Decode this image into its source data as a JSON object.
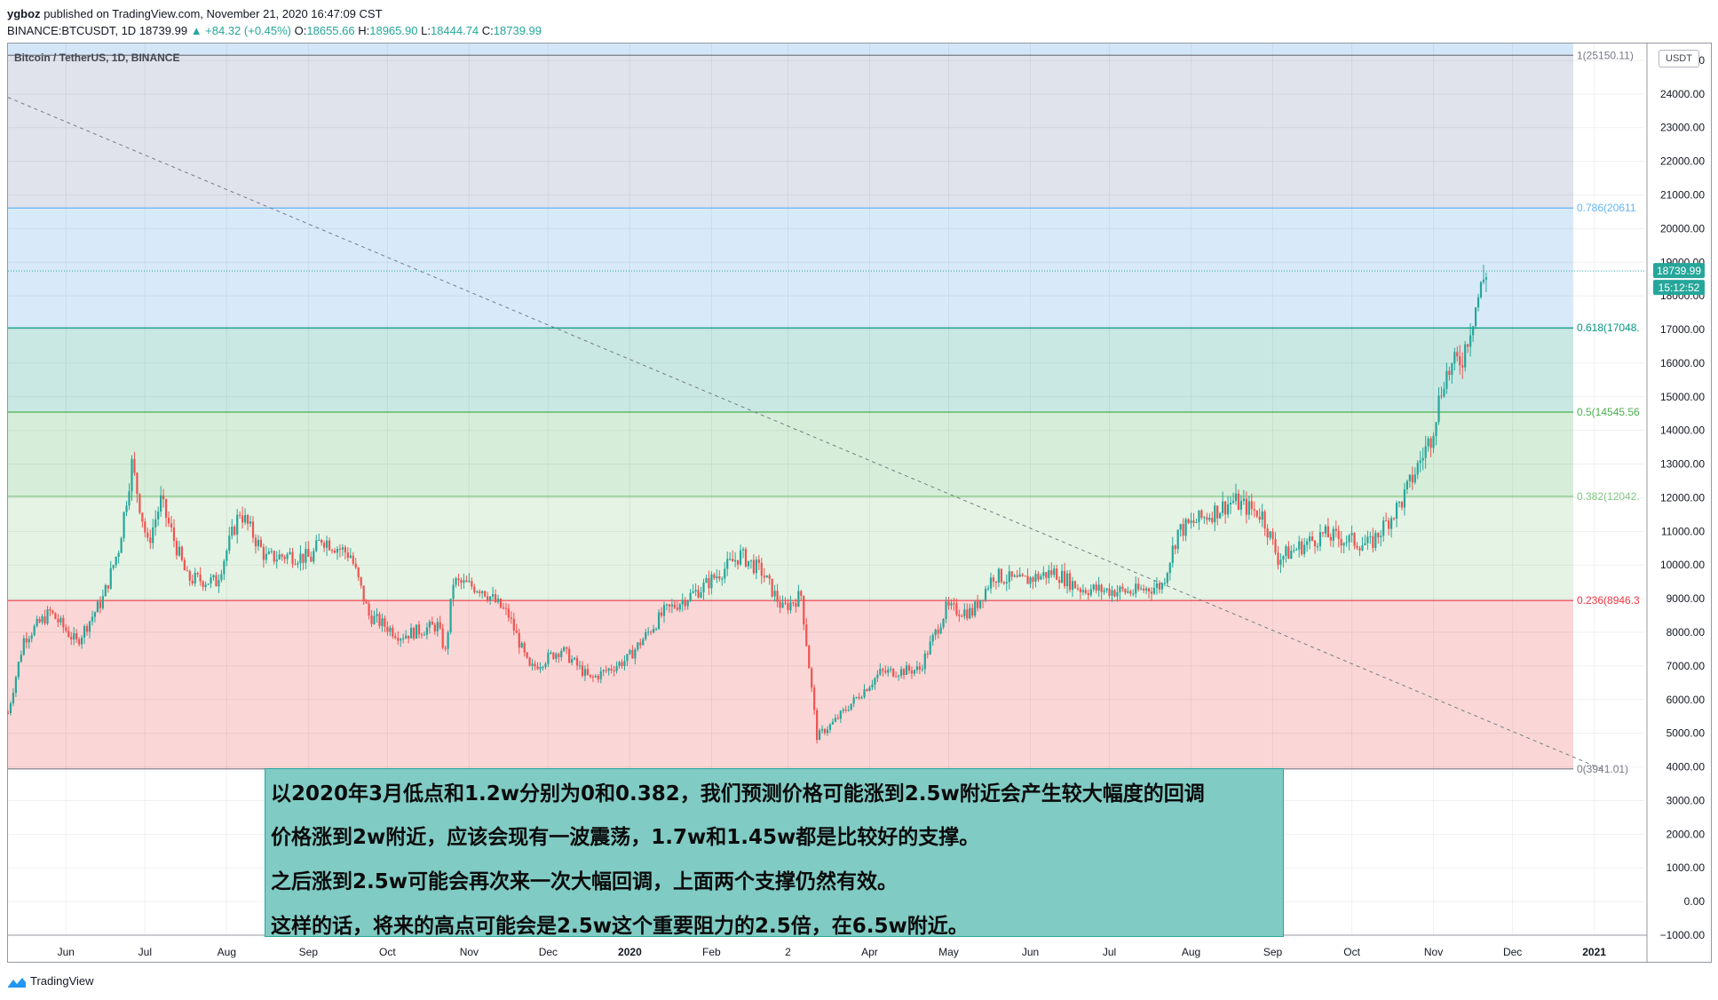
{
  "header": {
    "publisher": "ygboz",
    "published_text": "published on TradingView.com, November 21, 2020 16:47:09 CST",
    "symbol_line": "BINANCE:BTCUSDT, 1D",
    "last": "18739.99",
    "change": "▲ +84.32 (+0.45%)",
    "o_label": "O:",
    "o_value": "18655.66",
    "h_label": "H:",
    "h_value": "18965.90",
    "l_label": "L:",
    "l_value": "18444.74",
    "c_label": "C:",
    "c_value": "18739.99"
  },
  "chart_label": "Bitcoin / TetherUS, 1D, BINANCE",
  "unit_badge": "USDT",
  "price_tag": "18739.99",
  "countdown_tag": "15:12:52",
  "annotation": {
    "lines": [
      "以2020年3月低点和1.2w分别为0和0.382，我们预测价格可能涨到2.5w附近会产生较大幅度的回调",
      "价格涨到2w附近，应该会现有一波震荡，1.7w和1.45w都是比较好的支撑。",
      "之后涨到2.5w可能会再次来一次大幅回调，上面两个支撑仍然有效。",
      "这样的话，将来的高点可能会是2.5w这个重要阻力的2.5倍，在6.5w附近。"
    ]
  },
  "footer": {
    "brand": "TradingView"
  },
  "colors": {
    "up": "#26a69a",
    "down": "#ef5350",
    "fib_1_line": "#787b86",
    "fib_0786": "#64b5f6",
    "fib_0618": "#089981",
    "fib_05": "#4caf50",
    "fib_0382": "#81c784",
    "fib_0236": "#f23645",
    "fib_0": "#787b86"
  },
  "chart_data": {
    "type": "candlestick",
    "symbol": "BTCUSDT",
    "interval": "1D",
    "ylim": [
      -1000,
      25500
    ],
    "y_ticks": [
      25000,
      24000,
      23000,
      22000,
      21000,
      20000,
      19000,
      18000,
      17000,
      16000,
      15000,
      14000,
      13000,
      12000,
      11000,
      10000,
      9000,
      8000,
      7000,
      6000,
      5000,
      4000,
      3000,
      2000,
      1000,
      0,
      -1000
    ],
    "y_tick_labels": [
      "25000.00",
      "24000.00",
      "23000.00",
      "22000.00",
      "21000.00",
      "20000.00",
      "19000.00",
      "18000.00",
      "17000.00",
      "16000.00",
      "15000.00",
      "14000.00",
      "13000.00",
      "12000.00",
      "11000.00",
      "10000.00",
      "9000.00",
      "8000.00",
      "7000.00",
      "6000.00",
      "5000.00",
      "4000.00",
      "3000.00",
      "2000.00",
      "1000.00",
      "0.00",
      "−1000.00"
    ],
    "x_range": [
      "2019-05-10",
      "2021-01-20"
    ],
    "x_ticks": [
      {
        "date": "2019-06-01",
        "label": "Jun"
      },
      {
        "date": "2019-07-01",
        "label": "Jul"
      },
      {
        "date": "2019-08-01",
        "label": "Aug"
      },
      {
        "date": "2019-09-01",
        "label": "Sep"
      },
      {
        "date": "2019-10-01",
        "label": "Oct"
      },
      {
        "date": "2019-11-01",
        "label": "Nov"
      },
      {
        "date": "2019-12-01",
        "label": "Dec"
      },
      {
        "date": "2020-01-01",
        "label": "2020",
        "bold": true
      },
      {
        "date": "2020-02-01",
        "label": "Feb"
      },
      {
        "date": "2020-03-01",
        "label": "2"
      },
      {
        "date": "2020-04-01",
        "label": "Apr"
      },
      {
        "date": "2020-05-01",
        "label": "May"
      },
      {
        "date": "2020-06-01",
        "label": "Jun"
      },
      {
        "date": "2020-07-01",
        "label": "Jul"
      },
      {
        "date": "2020-08-01",
        "label": "Aug"
      },
      {
        "date": "2020-09-01",
        "label": "Sep"
      },
      {
        "date": "2020-10-01",
        "label": "Oct"
      },
      {
        "date": "2020-11-01",
        "label": "Nov"
      },
      {
        "date": "2020-12-01",
        "label": "Dec"
      },
      {
        "date": "2021-01-01",
        "label": "2021",
        "bold": true
      }
    ],
    "fib_levels": [
      {
        "ratio": 1,
        "price": 25150.11,
        "label": "1(25150.11)",
        "color": "#787b86",
        "fill": "#e0e3eb"
      },
      {
        "ratio": 0.786,
        "price": 20611,
        "label": "0.786(20611",
        "color": "#64b5f6",
        "fill": "#d8eaf9"
      },
      {
        "ratio": 0.618,
        "price": 17048,
        "label": "0.618(17048.",
        "color": "#089981",
        "fill": "#c9e8e3"
      },
      {
        "ratio": 0.5,
        "price": 14545.56,
        "label": "0.5(14545.56",
        "color": "#4caf50",
        "fill": "#d6eed9"
      },
      {
        "ratio": 0.382,
        "price": 12042,
        "label": "0.382(12042.",
        "color": "#81c784",
        "fill": "#e5f3e4"
      },
      {
        "ratio": 0.236,
        "price": 8946.3,
        "label": "0.236(8946.3",
        "color": "#f23645",
        "fill": "#fad7d6"
      },
      {
        "ratio": 0,
        "price": 3941.01,
        "label": "0(3941.01)",
        "color": "#787b86",
        "fill": null
      }
    ],
    "fib_top_fill": "#d3e6f8",
    "trendline": {
      "x": [
        "2019-05-10",
        "2021-01-05"
      ],
      "y": [
        23900,
        3900
      ]
    },
    "last_price": 18739.99,
    "price_path": [
      [
        "2019-05-10",
        5600
      ],
      [
        "2019-05-16",
        7800
      ],
      [
        "2019-05-26",
        8600
      ],
      [
        "2019-06-05",
        7700
      ],
      [
        "2019-06-15",
        9000
      ],
      [
        "2019-06-21",
        10500
      ],
      [
        "2019-06-26",
        13000
      ],
      [
        "2019-07-02",
        10600
      ],
      [
        "2019-07-07",
        11900
      ],
      [
        "2019-07-17",
        9600
      ],
      [
        "2019-07-28",
        9500
      ],
      [
        "2019-08-06",
        11600
      ],
      [
        "2019-08-16",
        10200
      ],
      [
        "2019-08-25",
        10300
      ],
      [
        "2019-09-02",
        10200
      ],
      [
        "2019-09-06",
        10800
      ],
      [
        "2019-09-17",
        10300
      ],
      [
        "2019-09-24",
        8500
      ],
      [
        "2019-10-06",
        7900
      ],
      [
        "2019-10-20",
        8200
      ],
      [
        "2019-10-23",
        7400
      ],
      [
        "2019-10-26",
        9500
      ],
      [
        "2019-11-06",
        9300
      ],
      [
        "2019-11-16",
        8500
      ],
      [
        "2019-11-24",
        6900
      ],
      [
        "2019-12-06",
        7500
      ],
      [
        "2019-12-17",
        6600
      ],
      [
        "2019-12-31",
        7200
      ],
      [
        "2020-01-14",
        8600
      ],
      [
        "2020-01-28",
        9300
      ],
      [
        "2020-02-12",
        10300
      ],
      [
        "2020-02-20",
        9800
      ],
      [
        "2020-02-28",
        8700
      ],
      [
        "2020-03-06",
        9100
      ],
      [
        "2020-03-12",
        4900
      ],
      [
        "2020-03-18",
        5300
      ],
      [
        "2020-04-05",
        6800
      ],
      [
        "2020-04-20",
        6900
      ],
      [
        "2020-04-30",
        8700
      ],
      [
        "2020-05-10",
        8600
      ],
      [
        "2020-05-18",
        9700
      ],
      [
        "2020-05-28",
        9500
      ],
      [
        "2020-06-10",
        9800
      ],
      [
        "2020-06-20",
        9300
      ],
      [
        "2020-07-10",
        9200
      ],
      [
        "2020-07-21",
        9400
      ],
      [
        "2020-07-27",
        11000
      ],
      [
        "2020-08-17",
        11900
      ],
      [
        "2020-08-28",
        11500
      ],
      [
        "2020-09-03",
        10200
      ],
      [
        "2020-09-20",
        10900
      ],
      [
        "2020-10-08",
        10600
      ],
      [
        "2020-10-20",
        11900
      ],
      [
        "2020-10-31",
        13800
      ],
      [
        "2020-11-05",
        15600
      ],
      [
        "2020-11-12",
        16200
      ],
      [
        "2020-11-17",
        17700
      ],
      [
        "2020-11-21",
        18740
      ]
    ]
  }
}
